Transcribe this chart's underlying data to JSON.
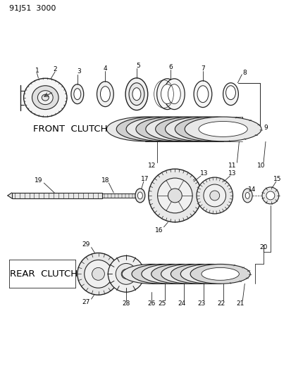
{
  "title": "91J51 3000",
  "bg": "#ffffff",
  "lc": "#222222",
  "tc": "#000000",
  "front_clutch_label": "FRONT  CLUTCH",
  "rear_clutch_label": "REAR  CLUTCH",
  "fig_w": 4.14,
  "fig_h": 5.33,
  "dpi": 100
}
